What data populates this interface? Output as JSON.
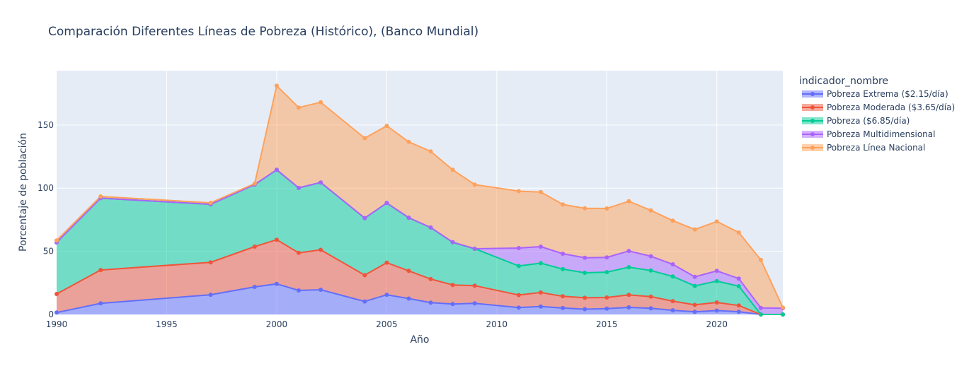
{
  "chart_data": {
    "type": "area",
    "title": "Comparación Diferentes Líneas de Pobreza (Histórico), (Banco Mundial)",
    "xlabel": "Año",
    "ylabel": "Porcentaje de población",
    "xlim": [
      1990,
      2023
    ],
    "ylim": [
      0,
      193
    ],
    "x_ticks": [
      1990,
      1995,
      2000,
      2005,
      2010,
      2015,
      2020
    ],
    "y_ticks": [
      0,
      50,
      100,
      150
    ],
    "stacked": true,
    "grid": true,
    "legend": {
      "title": "indicador_nombre",
      "position": "right"
    },
    "x": [
      1990,
      1992,
      1997,
      1999,
      2000,
      2001,
      2002,
      2004,
      2005,
      2006,
      2007,
      2008,
      2009,
      2011,
      2012,
      2013,
      2014,
      2015,
      2016,
      2017,
      2018,
      2019,
      2020,
      2021,
      2022,
      2023
    ],
    "series": [
      {
        "name": "Pobreza Extrema ($2.15/día)",
        "color": "#636efa",
        "values": [
          1.5,
          8.8,
          15.6,
          21.8,
          24.2,
          19.0,
          19.6,
          10.3,
          15.6,
          12.6,
          9.4,
          8.3,
          8.8,
          5.4,
          6.3,
          5.1,
          4.2,
          4.6,
          5.6,
          4.9,
          3.3,
          2.1,
          3.1,
          2.2,
          0,
          0
        ]
      },
      {
        "name": "Pobreza Moderada ($3.65/día)",
        "color": "#ef553b",
        "values": [
          14.7,
          26.4,
          25.7,
          31.9,
          35.0,
          29.8,
          31.6,
          20.8,
          25.4,
          21.9,
          18.6,
          15.1,
          14.0,
          10.0,
          11.1,
          9.3,
          9.0,
          8.8,
          9.9,
          9.2,
          7.3,
          5.5,
          6.4,
          4.9,
          0,
          0
        ]
      },
      {
        "name": "Pobreza ($6.85/día)",
        "color": "#00cc96",
        "values": [
          40.8,
          56.9,
          45.9,
          49.1,
          55.3,
          51.4,
          53.3,
          45.2,
          47.2,
          42.1,
          40.8,
          33.8,
          29.2,
          23.0,
          23.2,
          21.5,
          19.8,
          20.1,
          21.9,
          20.7,
          19.5,
          15.0,
          16.9,
          15.3,
          0,
          0
        ]
      },
      {
        "name": "Pobreza Multidimensional",
        "color": "#ab63fa",
        "values": [
          0,
          0,
          0,
          0,
          0,
          0,
          0,
          0,
          0,
          0,
          0,
          0,
          0,
          14.2,
          13.1,
          12.2,
          11.9,
          11.7,
          12.9,
          11.3,
          9.6,
          7.2,
          8.1,
          6.0,
          5.2,
          5.0
        ]
      },
      {
        "name": "Pobreza Línea Nacional",
        "color": "#ffa15a",
        "values": [
          1.6,
          1.3,
          1.2,
          0.8,
          66.6,
          63.6,
          63.5,
          63.3,
          61.1,
          60.0,
          60.3,
          57.3,
          50.8,
          45.0,
          43.2,
          39.0,
          39.2,
          38.7,
          39.3,
          36.3,
          34.6,
          37.5,
          39.1,
          36.5,
          38.0,
          0.5
        ]
      }
    ]
  }
}
